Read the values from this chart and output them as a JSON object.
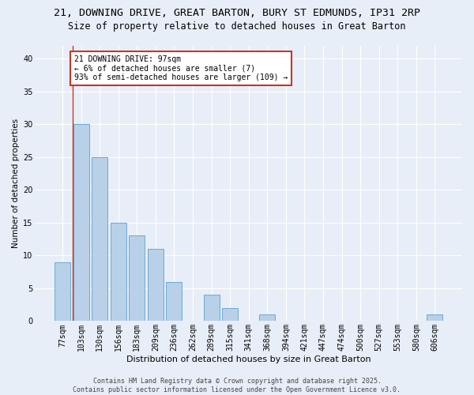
{
  "title1": "21, DOWNING DRIVE, GREAT BARTON, BURY ST EDMUNDS, IP31 2RP",
  "title2": "Size of property relative to detached houses in Great Barton",
  "xlabel": "Distribution of detached houses by size in Great Barton",
  "ylabel": "Number of detached properties",
  "categories": [
    "77sqm",
    "103sqm",
    "130sqm",
    "156sqm",
    "183sqm",
    "209sqm",
    "236sqm",
    "262sqm",
    "289sqm",
    "315sqm",
    "341sqm",
    "368sqm",
    "394sqm",
    "421sqm",
    "447sqm",
    "474sqm",
    "500sqm",
    "527sqm",
    "553sqm",
    "580sqm",
    "606sqm"
  ],
  "values": [
    9,
    30,
    25,
    15,
    13,
    11,
    6,
    0,
    4,
    2,
    0,
    1,
    0,
    0,
    0,
    0,
    0,
    0,
    0,
    0,
    1
  ],
  "bar_color": "#b8d0e8",
  "bar_edge_color": "#6aaad4",
  "highlight_line_color": "#c0392b",
  "annotation_text": "21 DOWNING DRIVE: 97sqm\n← 6% of detached houses are smaller (7)\n93% of semi-detached houses are larger (109) →",
  "annotation_box_color": "#ffffff",
  "annotation_box_edge_color": "#c0392b",
  "ylim": [
    0,
    42
  ],
  "yticks": [
    0,
    5,
    10,
    15,
    20,
    25,
    30,
    35,
    40
  ],
  "footer_text": "Contains HM Land Registry data © Crown copyright and database right 2025.\nContains public sector information licensed under the Open Government Licence v3.0.",
  "background_color": "#e8eef7",
  "title1_fontsize": 9.5,
  "title2_fontsize": 8.5,
  "annotation_fontsize": 7,
  "footer_fontsize": 6,
  "axis_fontsize": 7,
  "ylabel_fontsize": 7.5,
  "xlabel_fontsize": 8
}
